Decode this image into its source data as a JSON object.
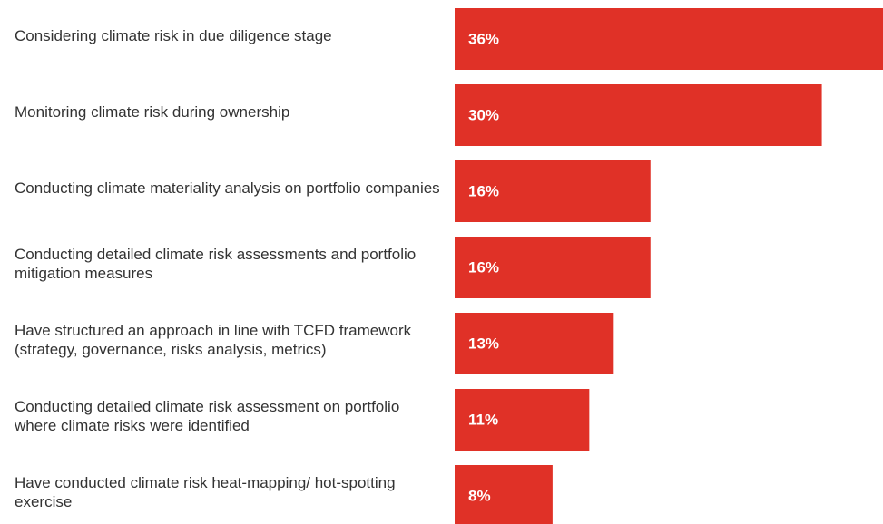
{
  "chart_data": {
    "type": "bar",
    "orientation": "horizontal",
    "categories": [
      "Considering climate risk in due diligence stage",
      "Monitoring climate risk during ownership",
      "Conducting climate materiality analysis on portfolio companies",
      "Conducting detailed climate risk assessments and portfolio mitigation measures",
      "Have structured an approach in line with TCFD framework (strategy, governance, risks analysis, metrics)",
      "Conducting detailed climate risk assessment on portfolio where climate risks were identified",
      "Have conducted climate risk heat-mapping/ hot-spotting exercise"
    ],
    "values": [
      36,
      30,
      16,
      16,
      13,
      11,
      8
    ],
    "value_labels": [
      "36%",
      "30%",
      "16%",
      "16%",
      "13%",
      "11%",
      "8%"
    ],
    "color": "#e03127",
    "xlim": [
      0,
      35
    ]
  }
}
